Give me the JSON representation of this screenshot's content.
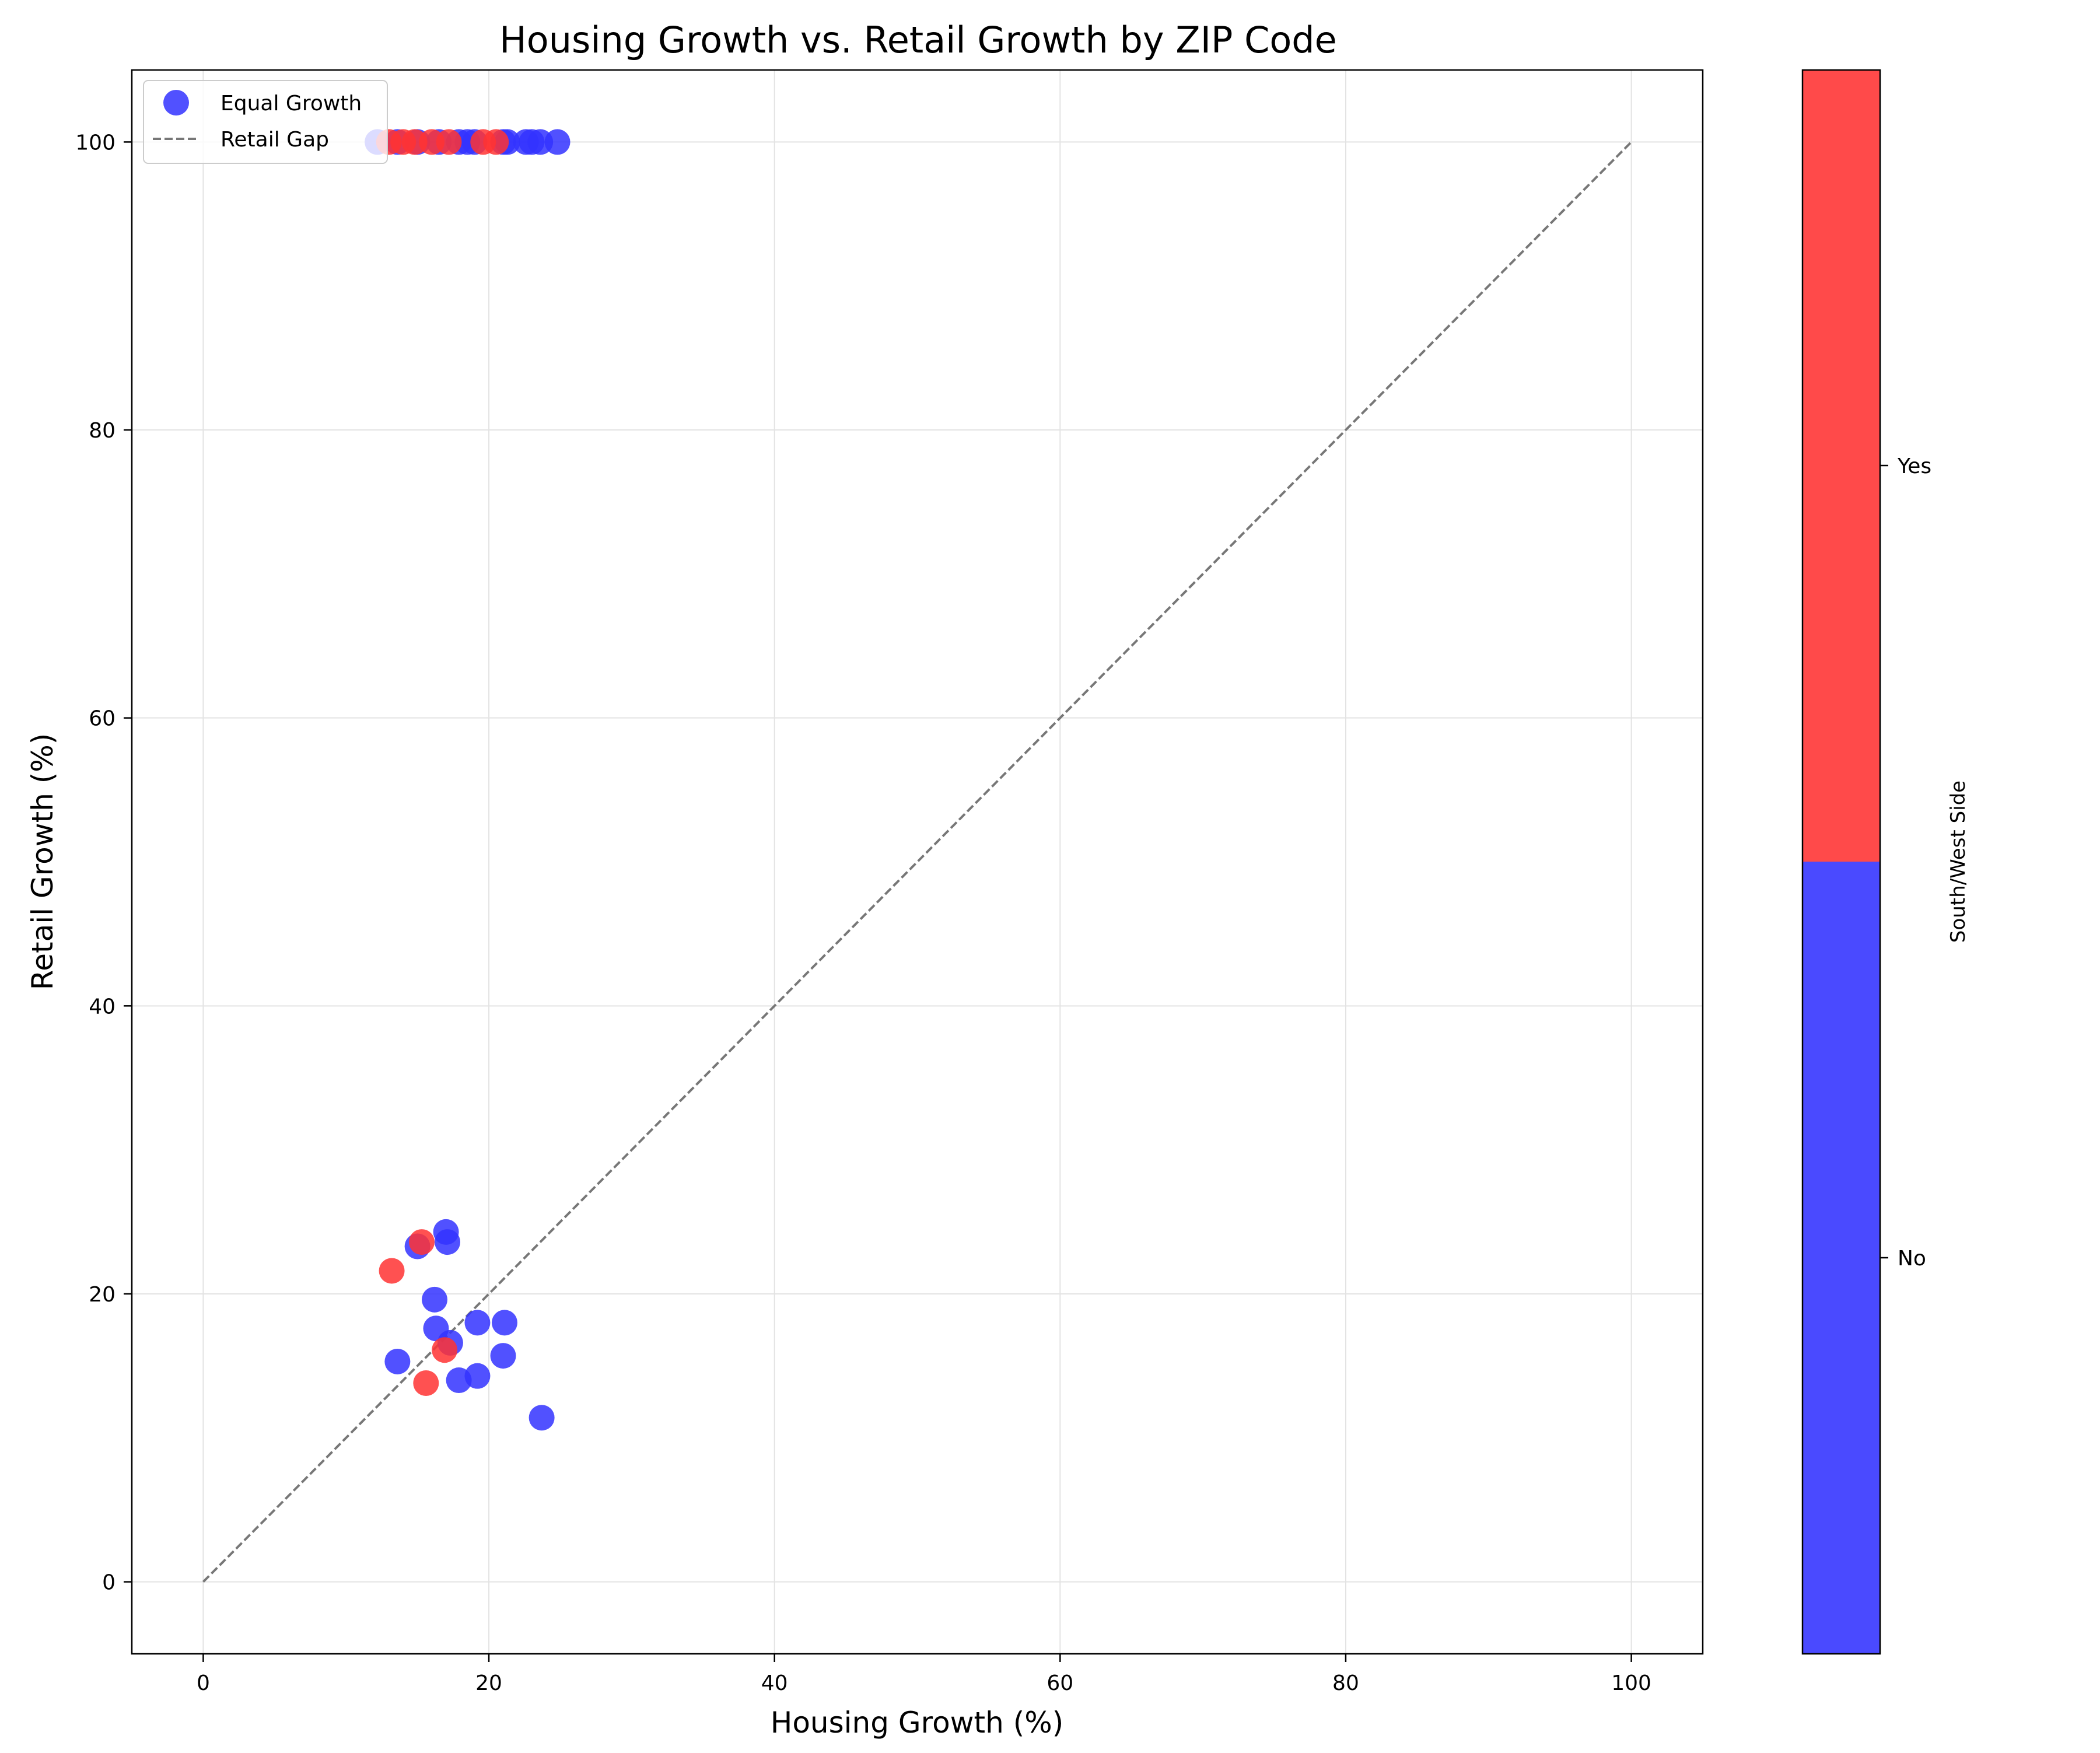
{
  "chart_data": {
    "type": "scatter",
    "title": "Housing Growth vs. Retail Growth by ZIP Code",
    "xlabel": "Housing Growth (%)",
    "ylabel": "Retail Growth (%)",
    "xlim": [
      -5,
      105
    ],
    "ylim": [
      -5,
      105
    ],
    "xticks": [
      0,
      20,
      40,
      60,
      80,
      100
    ],
    "yticks": [
      0,
      20,
      40,
      60,
      80,
      100
    ],
    "grid": true,
    "legend": {
      "position": "top-left",
      "entries": [
        {
          "label": "Equal Growth",
          "kind": "marker"
        },
        {
          "label": "Retail Gap",
          "kind": "dashed-line"
        }
      ]
    },
    "reference_line": {
      "x": [
        0,
        100
      ],
      "y": [
        0,
        100
      ],
      "color": "#777777",
      "style": "dashed"
    },
    "colorbar": {
      "label": "South/West Side",
      "ticks": [
        "No",
        "Yes"
      ],
      "colors": {
        "No": "#4a4aff",
        "Yes": "#ff4a4a"
      }
    },
    "series": [
      {
        "category": "No",
        "color": "#3333ff",
        "points": [
          {
            "x": 12.2,
            "y": 100
          },
          {
            "x": 13.6,
            "y": 100
          },
          {
            "x": 15.0,
            "y": 100
          },
          {
            "x": 16.5,
            "y": 100
          },
          {
            "x": 17.9,
            "y": 100
          },
          {
            "x": 18.5,
            "y": 100
          },
          {
            "x": 19.0,
            "y": 100
          },
          {
            "x": 21.0,
            "y": 100
          },
          {
            "x": 21.3,
            "y": 100
          },
          {
            "x": 22.6,
            "y": 100
          },
          {
            "x": 23.0,
            "y": 100
          },
          {
            "x": 23.6,
            "y": 100
          },
          {
            "x": 24.8,
            "y": 100
          },
          {
            "x": 15.0,
            "y": 23.3
          },
          {
            "x": 17.0,
            "y": 24.3
          },
          {
            "x": 17.1,
            "y": 23.6
          },
          {
            "x": 16.2,
            "y": 19.6
          },
          {
            "x": 16.3,
            "y": 17.6
          },
          {
            "x": 17.3,
            "y": 16.6
          },
          {
            "x": 19.2,
            "y": 18.0
          },
          {
            "x": 21.1,
            "y": 18.0
          },
          {
            "x": 21.0,
            "y": 15.7
          },
          {
            "x": 13.6,
            "y": 15.3
          },
          {
            "x": 17.9,
            "y": 14.0
          },
          {
            "x": 19.2,
            "y": 14.3
          },
          {
            "x": 23.7,
            "y": 11.4
          }
        ]
      },
      {
        "category": "Yes",
        "color": "#ff3333",
        "points": [
          {
            "x": 13.0,
            "y": 100
          },
          {
            "x": 14.0,
            "y": 100
          },
          {
            "x": 14.8,
            "y": 100
          },
          {
            "x": 16.0,
            "y": 100
          },
          {
            "x": 17.2,
            "y": 100
          },
          {
            "x": 19.6,
            "y": 100
          },
          {
            "x": 20.5,
            "y": 100
          },
          {
            "x": 13.2,
            "y": 21.6
          },
          {
            "x": 15.3,
            "y": 23.6
          },
          {
            "x": 16.9,
            "y": 16.1
          },
          {
            "x": 15.6,
            "y": 13.8
          }
        ]
      }
    ]
  }
}
